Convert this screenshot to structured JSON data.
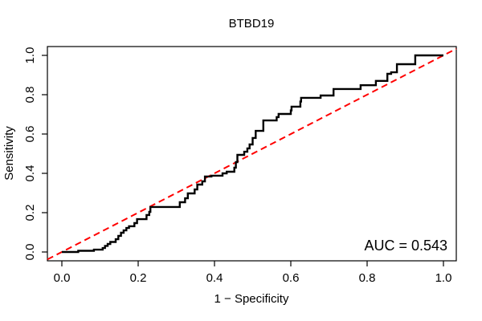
{
  "figure": {
    "background": "#ffffff",
    "axis_color": "#000000"
  },
  "chart_data": {
    "type": "line",
    "subtype": "roc-curve",
    "title": "BTBD19",
    "xlabel": "1 − Specificity",
    "ylabel": "Sensitivity",
    "xlim": [
      0,
      1
    ],
    "ylim": [
      0,
      1
    ],
    "x_ticks": [
      0.0,
      0.2,
      0.4,
      0.6,
      0.8,
      1.0
    ],
    "x_tick_labels": [
      "0.0",
      "0.2",
      "0.4",
      "0.6",
      "0.8",
      "1.0"
    ],
    "y_ticks": [
      0.0,
      0.2,
      0.4,
      0.6,
      0.8,
      1.0
    ],
    "y_tick_labels": [
      "0.0",
      "0.2",
      "0.4",
      "0.6",
      "0.8",
      "1.0"
    ],
    "grid": false,
    "legend": "none",
    "annotation": {
      "text": "AUC = 0.543",
      "value": 0.543,
      "position": "bottom-right"
    },
    "series": [
      {
        "name": "ROC curve",
        "color": "#000000",
        "line_width": 2.4,
        "style": "step",
        "points": [
          [
            0.0,
            0.0
          ],
          [
            0.043,
            0.006
          ],
          [
            0.084,
            0.012
          ],
          [
            0.107,
            0.02
          ],
          [
            0.113,
            0.031
          ],
          [
            0.12,
            0.041
          ],
          [
            0.127,
            0.051
          ],
          [
            0.141,
            0.065
          ],
          [
            0.148,
            0.082
          ],
          [
            0.155,
            0.098
          ],
          [
            0.162,
            0.11
          ],
          [
            0.169,
            0.122
          ],
          [
            0.176,
            0.131
          ],
          [
            0.19,
            0.147
          ],
          [
            0.197,
            0.167
          ],
          [
            0.222,
            0.188
          ],
          [
            0.229,
            0.204
          ],
          [
            0.232,
            0.229
          ],
          [
            0.309,
            0.253
          ],
          [
            0.323,
            0.273
          ],
          [
            0.33,
            0.298
          ],
          [
            0.348,
            0.318
          ],
          [
            0.355,
            0.343
          ],
          [
            0.368,
            0.359
          ],
          [
            0.375,
            0.384
          ],
          [
            0.392,
            0.388
          ],
          [
            0.421,
            0.4
          ],
          [
            0.432,
            0.408
          ],
          [
            0.452,
            0.429
          ],
          [
            0.456,
            0.457
          ],
          [
            0.46,
            0.494
          ],
          [
            0.478,
            0.51
          ],
          [
            0.486,
            0.527
          ],
          [
            0.492,
            0.547
          ],
          [
            0.5,
            0.58
          ],
          [
            0.508,
            0.616
          ],
          [
            0.528,
            0.669
          ],
          [
            0.563,
            0.686
          ],
          [
            0.568,
            0.702
          ],
          [
            0.6,
            0.72
          ],
          [
            0.602,
            0.739
          ],
          [
            0.625,
            0.765
          ],
          [
            0.627,
            0.784
          ],
          [
            0.678,
            0.796
          ],
          [
            0.712,
            0.829
          ],
          [
            0.783,
            0.848
          ],
          [
            0.823,
            0.87
          ],
          [
            0.853,
            0.906
          ],
          [
            0.863,
            0.914
          ],
          [
            0.878,
            0.955
          ],
          [
            0.926,
            1.0
          ],
          [
            1.0,
            1.0
          ]
        ]
      },
      {
        "name": "Reference diagonal",
        "color": "#FF0000",
        "line_width": 2,
        "style": "dashed",
        "points": [
          [
            0,
            0
          ],
          [
            1,
            1
          ]
        ]
      }
    ]
  }
}
